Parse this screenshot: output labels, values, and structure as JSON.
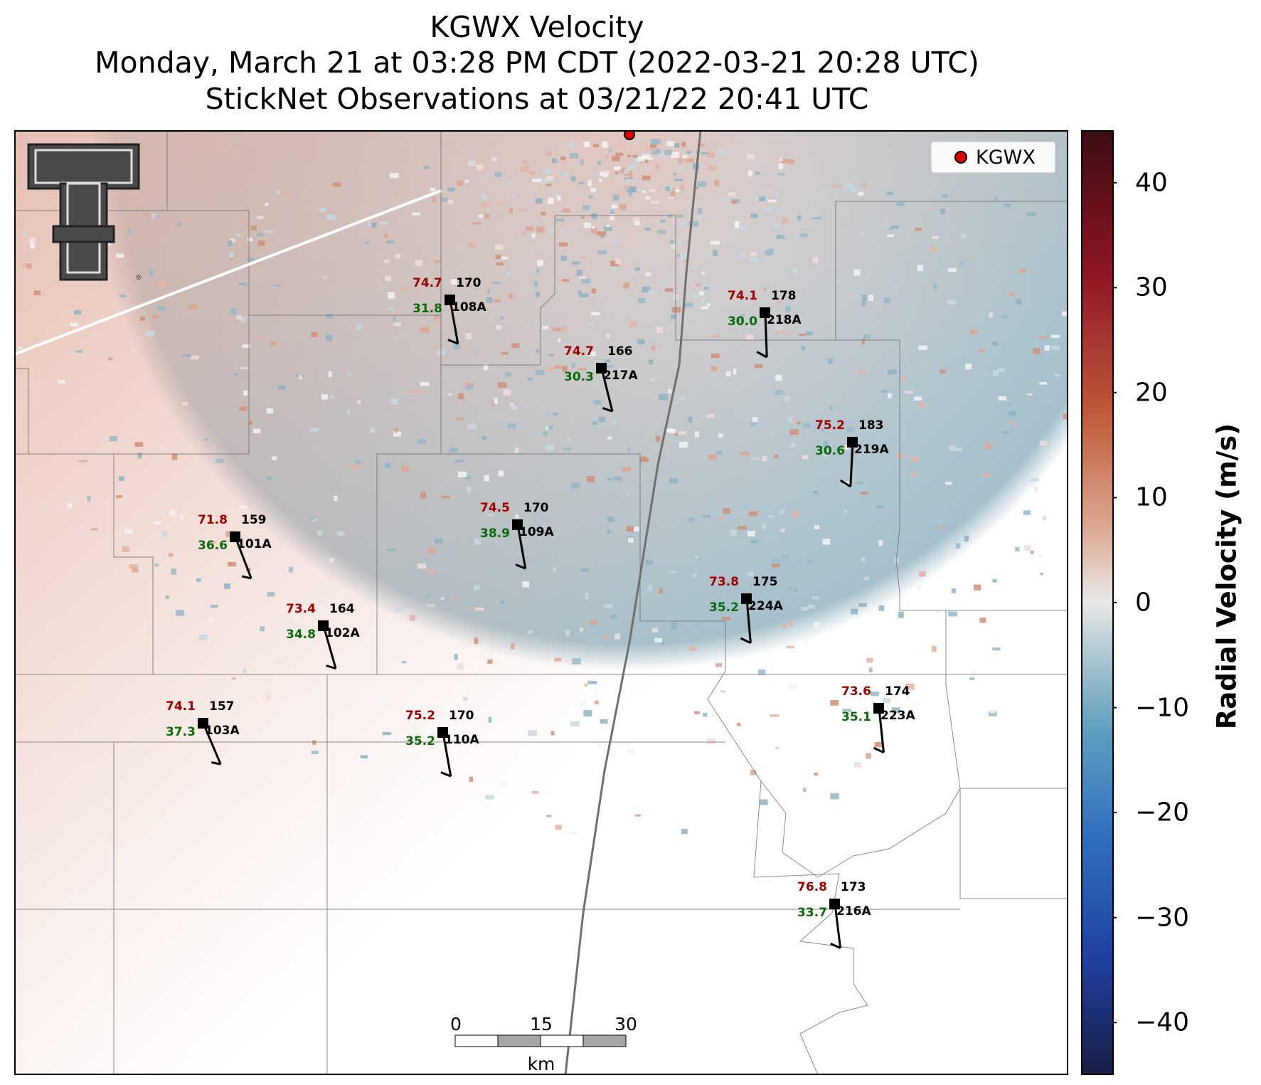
{
  "header": {
    "title_line1": "KGWX Velocity",
    "title_line2": "Monday, March 21 at 03:28 PM CDT (2022-03-21 20:28 UTC)",
    "title_line3": "StickNet Observations at 03/21/22 20:41 UTC"
  },
  "legend": {
    "label": "KGWX",
    "marker_color": "#e00000"
  },
  "colorbar": {
    "label": "Radial Velocity (m/s)",
    "ticks": [
      "40",
      "30",
      "20",
      "10",
      "0",
      "−10",
      "−20",
      "−30",
      "−40"
    ],
    "range": [
      -45,
      45
    ],
    "colors": [
      "#191f45",
      "#1f3f9f",
      "#2f6fbf",
      "#5a9ec0",
      "#9fbfcc",
      "#e8e8e8",
      "#dca88f",
      "#c05a3a",
      "#8e1525",
      "#3d0d12"
    ]
  },
  "scalebar": {
    "ticks": [
      "0",
      "15",
      "30"
    ],
    "unit": "km"
  },
  "logo": {
    "name": "Texas Tech Double T",
    "text": "T"
  },
  "stations": [
    {
      "id": "108A",
      "temp": "74.7",
      "dew": "31.8",
      "dir": "170"
    },
    {
      "id": "217A",
      "temp": "74.7",
      "dew": "30.3",
      "dir": "166"
    },
    {
      "id": "218A",
      "temp": "74.1",
      "dew": "30.0",
      "dir": "178"
    },
    {
      "id": "219A",
      "temp": "75.2",
      "dew": "30.6",
      "dir": "183"
    },
    {
      "id": "101A",
      "temp": "71.8",
      "dew": "36.6",
      "dir": "159"
    },
    {
      "id": "109A",
      "temp": "74.5",
      "dew": "38.9",
      "dir": "170"
    },
    {
      "id": "224A",
      "temp": "73.8",
      "dew": "35.2",
      "dir": "175"
    },
    {
      "id": "102A",
      "temp": "73.4",
      "dew": "34.8",
      "dir": "164"
    },
    {
      "id": "103A",
      "temp": "74.1",
      "dew": "37.3",
      "dir": "157"
    },
    {
      "id": "110A",
      "temp": "75.2",
      "dew": "35.2",
      "dir": "170"
    },
    {
      "id": "223A",
      "temp": "73.6",
      "dew": "35.1",
      "dir": "174"
    },
    {
      "id": "216A",
      "temp": "76.8",
      "dew": "33.7",
      "dir": "173"
    }
  ]
}
